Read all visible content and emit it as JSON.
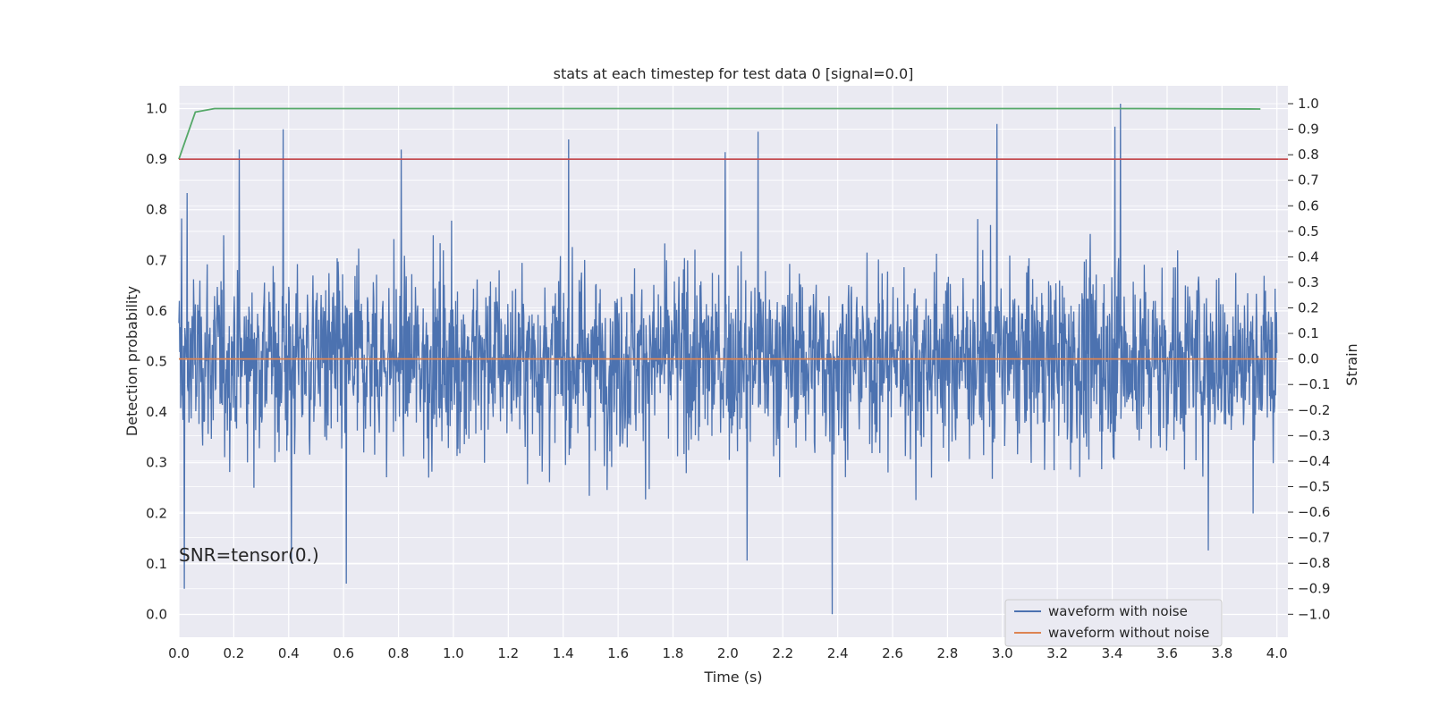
{
  "chart_data": {
    "type": "line",
    "title": "stats at each timestep for test data 0 [signal=0.0]",
    "xlabel": "Time (s)",
    "ylabel": "Detection probability",
    "ylabel_right": "Strain",
    "annotation": "SNR=tensor(0.)",
    "xlim": [
      0.0,
      4.04
    ],
    "ylim": [
      -0.045,
      1.045
    ],
    "ylim_right": [
      -1.09,
      1.07
    ],
    "x_ticks": [
      "0.0",
      "0.2",
      "0.4",
      "0.6",
      "0.8",
      "1.0",
      "1.2",
      "1.4",
      "1.6",
      "1.8",
      "2.0",
      "2.2",
      "2.4",
      "2.6",
      "2.8",
      "3.0",
      "3.2",
      "3.4",
      "3.6",
      "3.8",
      "4.0"
    ],
    "y_ticks": [
      "0.0",
      "0.1",
      "0.2",
      "0.3",
      "0.4",
      "0.5",
      "0.6",
      "0.7",
      "0.8",
      "0.9",
      "1.0"
    ],
    "y_ticks_right": [
      "1.0",
      "0.9",
      "0.8",
      "0.7",
      "0.6",
      "0.5",
      "0.4",
      "0.3",
      "0.2",
      "0.1",
      "0.0",
      "−0.1",
      "−0.2",
      "−0.3",
      "−0.4",
      "−0.5",
      "−0.6",
      "−0.7",
      "−0.8",
      "−0.9",
      "−1.0"
    ],
    "grid": true,
    "legend_position": "lower-right",
    "background": "#eaeaf2",
    "gridline_color": "#ffffff",
    "legend": [
      {
        "label": "waveform with noise",
        "color": "#4c72b0"
      },
      {
        "label": "waveform without noise",
        "color": "#dd8452"
      }
    ],
    "series": [
      {
        "name": "waveform with noise",
        "axis": "right",
        "color": "#4c72b0",
        "t_start": 0.0,
        "t_end": 4.0,
        "amplitude_range": [
          -1.0,
          1.0
        ],
        "peaks": [
          {
            "x": 0.01,
            "y": 0.55
          },
          {
            "x": 0.02,
            "y": -0.9
          },
          {
            "x": 0.03,
            "y": 0.65
          },
          {
            "x": 0.22,
            "y": 0.82
          },
          {
            "x": 0.38,
            "y": 0.9
          },
          {
            "x": 0.41,
            "y": -0.8
          },
          {
            "x": 0.61,
            "y": -0.88
          },
          {
            "x": 0.81,
            "y": 0.82
          },
          {
            "x": 1.42,
            "y": 0.86
          },
          {
            "x": 1.99,
            "y": 0.81
          },
          {
            "x": 2.07,
            "y": -0.79
          },
          {
            "x": 2.11,
            "y": 0.89
          },
          {
            "x": 2.38,
            "y": -1.0
          },
          {
            "x": 2.98,
            "y": 0.92
          },
          {
            "x": 3.41,
            "y": 0.91
          },
          {
            "x": 3.43,
            "y": 1.0
          },
          {
            "x": 3.75,
            "y": -0.75
          }
        ]
      },
      {
        "name": "waveform without noise",
        "axis": "right",
        "color": "#dd8452",
        "x": [
          0.0,
          4.0
        ],
        "y": [
          0.0,
          0.0
        ]
      },
      {
        "axis": "left",
        "color": "#55a868",
        "x": [
          0.0,
          0.06,
          0.13,
          0.2,
          1.0,
          2.0,
          3.0,
          3.5,
          3.94
        ],
        "y": [
          0.9,
          0.993,
          1.0,
          1.0,
          1.0,
          1.0,
          1.0,
          1.0,
          0.999
        ]
      },
      {
        "axis": "left",
        "color": "#c44e52",
        "x": [
          0.0,
          4.04
        ],
        "y": [
          0.9,
          0.9
        ]
      }
    ]
  }
}
